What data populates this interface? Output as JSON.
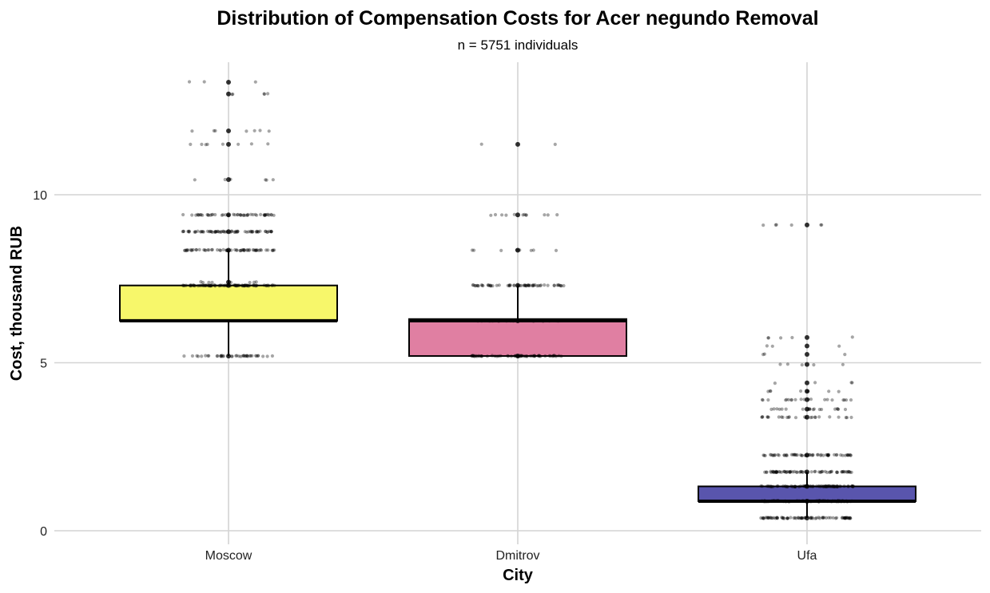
{
  "chart_data": {
    "type": "boxplot",
    "title": "Distribution of Compensation Costs for Acer negundo Removal",
    "subtitle": "n = 5751 individuals",
    "xlabel": "City",
    "ylabel": "Cost, thousand RUB",
    "categories": [
      "Moscow",
      "Dmitrov",
      "Ufa"
    ],
    "ylim": [
      -0.4,
      14.0
    ],
    "yticks": [
      0,
      5,
      10
    ],
    "grid": true,
    "colors": {
      "Moscow": "#f7f76a",
      "Dmitrov": "#e07fa2",
      "Ufa": "#5955ad"
    },
    "boxes": [
      {
        "name": "Moscow",
        "q1": 6.25,
        "median": 6.25,
        "q3": 7.3,
        "whisker_low": 5.2,
        "whisker_high": 8.35,
        "points": [
          {
            "y": 5.2,
            "n": 40
          },
          {
            "y": 7.3,
            "n": 80
          },
          {
            "y": 7.4,
            "n": 8
          },
          {
            "y": 8.35,
            "n": 60
          },
          {
            "y": 8.9,
            "n": 70
          },
          {
            "y": 9.4,
            "n": 50
          },
          {
            "y": 10.45,
            "n": 6
          },
          {
            "y": 11.5,
            "n": 8
          },
          {
            "y": 11.9,
            "n": 7
          },
          {
            "y": 13.0,
            "n": 5
          },
          {
            "y": 13.35,
            "n": 3
          }
        ]
      },
      {
        "name": "Dmitrov",
        "q1": 5.2,
        "median": 6.25,
        "q3": 6.3,
        "whisker_low": 5.2,
        "whisker_high": 7.3,
        "points": [
          {
            "y": 5.2,
            "n": 60
          },
          {
            "y": 6.25,
            "n": 30
          },
          {
            "y": 7.3,
            "n": 60
          },
          {
            "y": 8.35,
            "n": 8
          },
          {
            "y": 9.4,
            "n": 12
          },
          {
            "y": 11.5,
            "n": 2
          }
        ]
      },
      {
        "name": "Ufa",
        "q1": 0.88,
        "median": 0.88,
        "q3": 1.32,
        "whisker_low": 0.38,
        "whisker_high": 1.75,
        "points": [
          {
            "y": 0.38,
            "n": 80
          },
          {
            "y": 0.88,
            "n": 80
          },
          {
            "y": 1.32,
            "n": 80
          },
          {
            "y": 1.75,
            "n": 70
          },
          {
            "y": 2.25,
            "n": 60
          },
          {
            "y": 3.38,
            "n": 25
          },
          {
            "y": 3.62,
            "n": 20
          },
          {
            "y": 3.9,
            "n": 20
          },
          {
            "y": 4.15,
            "n": 8
          },
          {
            "y": 4.4,
            "n": 4
          },
          {
            "y": 4.95,
            "n": 5
          },
          {
            "y": 5.25,
            "n": 3
          },
          {
            "y": 5.5,
            "n": 3
          },
          {
            "y": 5.75,
            "n": 5
          },
          {
            "y": 9.1,
            "n": 6
          }
        ]
      }
    ]
  }
}
